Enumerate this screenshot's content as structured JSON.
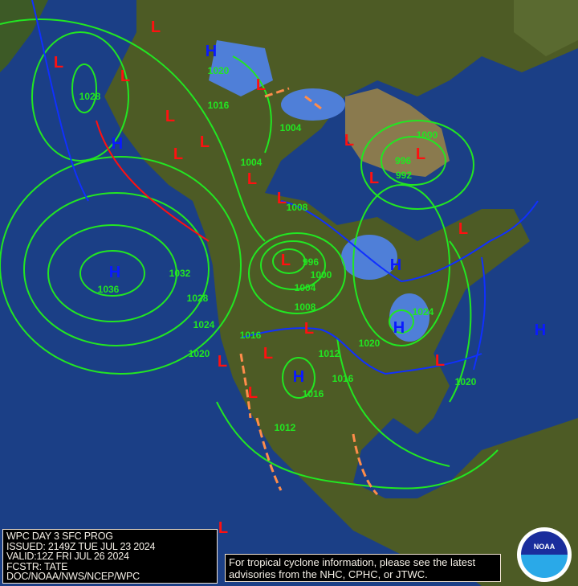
{
  "info_box": {
    "line1": "WPC DAY 3 SFC PROG",
    "line2": "ISSUED: 2149Z TUE JUL 23 2024",
    "line3": "VALID:12Z FRI JUL 26 2024",
    "line4": "FCSTR: TATE",
    "line5": "DOC/NOAA/NWS/NCEP/WPC"
  },
  "notice": {
    "line1": "For tropical cyclone information, please see the latest",
    "line2": "advisories from the NHC, CPHC, or JTWC."
  },
  "logo": {
    "text": "NOAA"
  },
  "colors": {
    "ocean": "#1b3f86",
    "land": "#4a5a22",
    "isobar": "#22e622",
    "high": "#0a1aff",
    "low": "#ff1010",
    "trough": "#ff8c4a",
    "borders": "#f2d6c8"
  },
  "high_labels": [
    "H",
    "H",
    "H",
    "H",
    "H",
    "H",
    "H"
  ],
  "low_labels": [
    "L",
    "L",
    "L",
    "L",
    "L",
    "L",
    "L",
    "L",
    "L",
    "L",
    "L",
    "L",
    "L",
    "L",
    "L",
    "L",
    "L",
    "L",
    "L",
    "L"
  ],
  "isobar_labels": [
    "1020",
    "1016",
    "1028",
    "1004",
    "1004",
    "1008",
    "1000",
    "996",
    "992",
    "996",
    "1000",
    "1004",
    "1008",
    "1032",
    "1036",
    "1028",
    "1024",
    "1020",
    "1016",
    "1012",
    "1020",
    "1016",
    "1016",
    "1012",
    "1024",
    "1020"
  ]
}
